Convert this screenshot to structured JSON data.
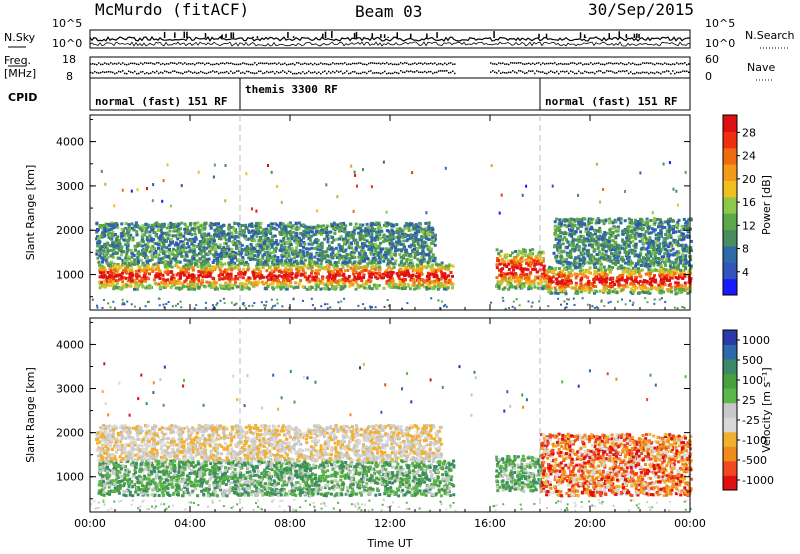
{
  "header": {
    "title": "McMurdo (fitACF)",
    "beam": "Beam 03",
    "date": "30/Sep/2015"
  },
  "left_labels": {
    "nsky": "N.Sky",
    "freq": "Freq.",
    "freq_unit": "[MHz]",
    "cpid": "CPID"
  },
  "right_labels": {
    "nsearch": "N.Search",
    "nave": "Nave"
  },
  "noise_axis": {
    "left_top": "10^5",
    "left_bottom": "10^0",
    "right_top": "10^5",
    "right_bottom": "10^0"
  },
  "freq_axis": {
    "left_top": "18",
    "left_bottom": "8",
    "right_top": "60",
    "right_bottom": "0"
  },
  "modes": [
    {
      "name": "normal (fast) 151 RF",
      "start": 0,
      "end": 6
    },
    {
      "name": "themis 3300 RF",
      "start": 6,
      "end": 18
    },
    {
      "name": "normal (fast) 151 RF",
      "start": 18,
      "end": 24
    }
  ],
  "colors": {
    "power": [
      "#1a1aff",
      "#3355bb",
      "#2e6aa8",
      "#4b8c5c",
      "#5aa84a",
      "#8cc84a",
      "#f0c020",
      "#f29a1a",
      "#f06a10",
      "#ee3010",
      "#e01010"
    ],
    "velocity": [
      "#e01010",
      "#f04820",
      "#f08a1a",
      "#f2b030",
      "#d8d8d8",
      "#c8c8c8",
      "#5ab84a",
      "#4aa040",
      "#3a8a6a",
      "#2e6aa8",
      "#2a3aa8"
    ]
  },
  "chart_data": [
    {
      "type": "heatmap",
      "name": "Power",
      "xlabel": "",
      "ylabel": "Slant Range [km]",
      "xlim": [
        0,
        24
      ],
      "ylim": [
        200,
        4600
      ],
      "yticks": [
        "1000",
        "2000",
        "3000",
        "4000"
      ],
      "colorbar": {
        "label": "Power [dB]",
        "ticks": [
          "4",
          "8",
          "12",
          "16",
          "20",
          "24",
          "28"
        ],
        "range": [
          0,
          31
        ]
      },
      "echo_bands": [
        {
          "x": [
            0.3,
            14.5
          ],
          "y": [
            700,
            1300
          ],
          "level": "high",
          "peak_db": 30
        },
        {
          "x": [
            0.2,
            13.8
          ],
          "y": [
            1300,
            2200
          ],
          "level": "medium",
          "peak_db": 14
        },
        {
          "x": [
            16.2,
            18.2
          ],
          "y": [
            700,
            1600
          ],
          "level": "high",
          "peak_db": 30
        },
        {
          "x": [
            18.2,
            24
          ],
          "y": [
            600,
            1200
          ],
          "level": "high",
          "peak_db": 30
        },
        {
          "x": [
            18.5,
            24
          ],
          "y": [
            1200,
            2300
          ],
          "level": "medium",
          "peak_db": 14
        }
      ]
    },
    {
      "type": "heatmap",
      "name": "Velocity",
      "xlabel": "Time UT",
      "ylabel": "Slant Range [km]",
      "xlim": [
        0,
        24
      ],
      "ylim": [
        200,
        4600
      ],
      "yticks": [
        "1000",
        "2000",
        "3000",
        "4000"
      ],
      "xticks": [
        "00:00",
        "04:00",
        "08:00",
        "12:00",
        "16:00",
        "20:00",
        "00:00"
      ],
      "colorbar": {
        "label": "Velocity [m s^-1]",
        "ticks": [
          "1000",
          "500",
          "100",
          "25",
          "-25",
          "-100",
          "-500",
          "-1000"
        ],
        "range": [
          -1000,
          1000
        ]
      },
      "echo_bands": [
        {
          "x": [
            0.3,
            14.5
          ],
          "y": [
            600,
            1400
          ],
          "level": "positive",
          "typical_ms": 100
        },
        {
          "x": [
            0.2,
            14.0
          ],
          "y": [
            1400,
            2200
          ],
          "level": "near-zero",
          "typical_ms": 0
        },
        {
          "x": [
            16.2,
            18.0
          ],
          "y": [
            700,
            1500
          ],
          "level": "positive",
          "typical_ms": 200
        },
        {
          "x": [
            18.0,
            24
          ],
          "y": [
            600,
            2000
          ],
          "level": "negative",
          "typical_ms": -150
        }
      ]
    }
  ]
}
